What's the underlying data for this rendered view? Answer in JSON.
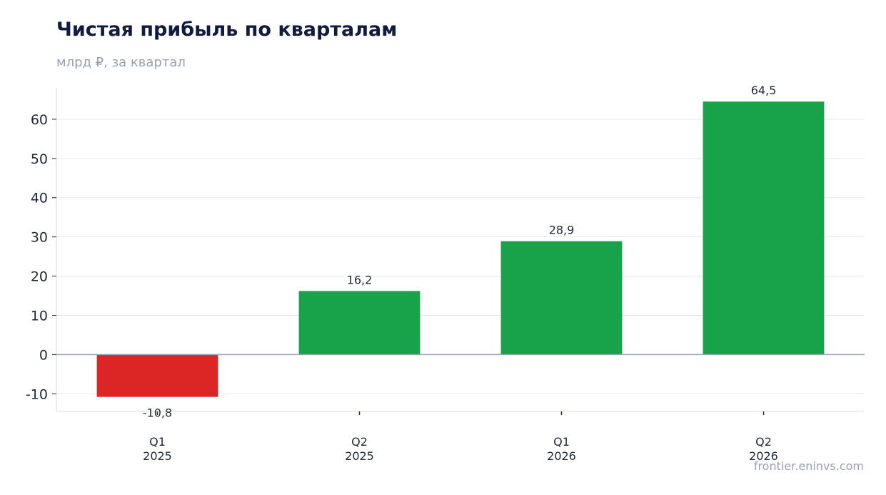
{
  "chart_data": {
    "type": "bar",
    "title": "Чистая прибыль по кварталам",
    "subtitle": "млрд ₽, за квартал",
    "categories": [
      [
        "Q1",
        "2025"
      ],
      [
        "Q2",
        "2025"
      ],
      [
        "Q1",
        "2026"
      ],
      [
        "Q2",
        "2026"
      ]
    ],
    "values": [
      -10.8,
      16.2,
      28.9,
      64.5
    ],
    "value_labels": [
      "-10,8",
      "16,2",
      "28,9",
      "64,5"
    ],
    "yticks": [
      -10,
      0,
      10,
      20,
      30,
      40,
      50,
      60
    ],
    "ytick_labels": [
      "-10",
      "0",
      "10",
      "20",
      "30",
      "40",
      "50",
      "60"
    ],
    "ylim": [
      -14.5,
      68
    ],
    "xlabel": "",
    "ylabel": "",
    "grid": true,
    "colors": {
      "positive": "#18a34a",
      "negative": "#dc2626",
      "grid": "#e2e8f0",
      "zero_line": "#94a3b8",
      "axis": "#e2e8f0"
    }
  },
  "footer": {
    "source": "frontier.eninvs.com"
  }
}
